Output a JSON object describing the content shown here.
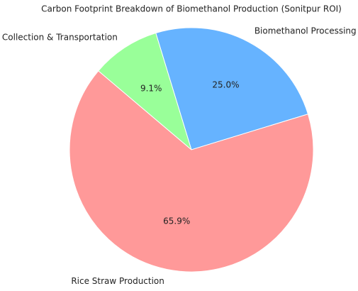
{
  "chart_data": {
    "type": "pie",
    "title": "Carbon Footprint Breakdown of Biomethanol Production (Sonitpur ROI)",
    "categories": [
      "Biomethanol Processing",
      "Collection & Transportation",
      "Rice Straw Production"
    ],
    "values": [
      25.0,
      9.1,
      65.9
    ],
    "value_labels": [
      "25.0%",
      "9.1%",
      "65.9%"
    ],
    "colors": [
      "#66b3ff",
      "#99ff99",
      "#ff9999"
    ]
  }
}
